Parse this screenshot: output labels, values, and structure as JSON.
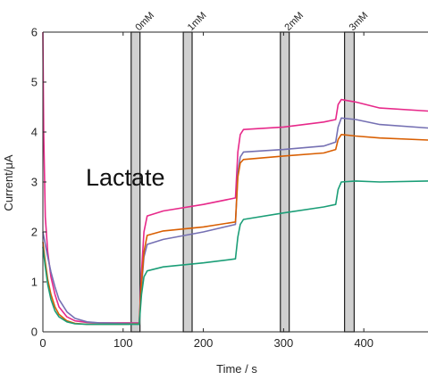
{
  "chart_data": {
    "type": "line",
    "title": "",
    "xlabel": "Time / s",
    "ylabel": "Current/μA",
    "xlim": [
      0,
      480
    ],
    "ylim": [
      0,
      6
    ],
    "xticks": [
      0,
      100,
      200,
      300,
      400
    ],
    "yticks": [
      0,
      1,
      2,
      3,
      4,
      5,
      6
    ],
    "grid": false,
    "annotation": "Lactate",
    "bands": [
      {
        "label": "0mM",
        "x0": 110,
        "x1": 121
      },
      {
        "label": "1mM",
        "x0": 175,
        "x1": 186
      },
      {
        "label": "2mM",
        "x0": 296,
        "x1": 307
      },
      {
        "label": "3mM",
        "x0": 376,
        "x1": 388
      }
    ],
    "series": [
      {
        "color": "#e7298a",
        "points": [
          [
            0,
            6.0
          ],
          [
            1,
            4.0
          ],
          [
            3,
            2.3
          ],
          [
            6,
            1.6
          ],
          [
            10,
            1.1
          ],
          [
            15,
            0.75
          ],
          [
            20,
            0.5
          ],
          [
            30,
            0.3
          ],
          [
            40,
            0.22
          ],
          [
            55,
            0.19
          ],
          [
            70,
            0.18
          ],
          [
            90,
            0.18
          ],
          [
            110,
            0.18
          ],
          [
            120,
            0.18
          ],
          [
            123,
            1.2
          ],
          [
            126,
            2.0
          ],
          [
            130,
            2.32
          ],
          [
            150,
            2.42
          ],
          [
            200,
            2.55
          ],
          [
            240,
            2.68
          ],
          [
            243,
            3.6
          ],
          [
            246,
            3.95
          ],
          [
            250,
            4.05
          ],
          [
            300,
            4.1
          ],
          [
            350,
            4.2
          ],
          [
            365,
            4.25
          ],
          [
            368,
            4.55
          ],
          [
            372,
            4.65
          ],
          [
            390,
            4.6
          ],
          [
            420,
            4.48
          ],
          [
            480,
            4.42
          ]
        ]
      },
      {
        "color": "#7570b3",
        "points": [
          [
            0,
            2.0
          ],
          [
            3,
            1.75
          ],
          [
            6,
            1.5
          ],
          [
            10,
            1.2
          ],
          [
            15,
            0.9
          ],
          [
            20,
            0.65
          ],
          [
            30,
            0.4
          ],
          [
            40,
            0.27
          ],
          [
            55,
            0.2
          ],
          [
            70,
            0.18
          ],
          [
            100,
            0.17
          ],
          [
            120,
            0.17
          ],
          [
            123,
            0.9
          ],
          [
            126,
            1.5
          ],
          [
            130,
            1.75
          ],
          [
            150,
            1.85
          ],
          [
            200,
            2.0
          ],
          [
            240,
            2.15
          ],
          [
            243,
            3.2
          ],
          [
            246,
            3.5
          ],
          [
            250,
            3.6
          ],
          [
            300,
            3.65
          ],
          [
            350,
            3.72
          ],
          [
            365,
            3.8
          ],
          [
            368,
            4.1
          ],
          [
            372,
            4.28
          ],
          [
            390,
            4.25
          ],
          [
            420,
            4.15
          ],
          [
            480,
            4.08
          ]
        ]
      },
      {
        "color": "#d95f02",
        "points": [
          [
            0,
            1.8
          ],
          [
            3,
            1.4
          ],
          [
            6,
            1.05
          ],
          [
            10,
            0.75
          ],
          [
            15,
            0.5
          ],
          [
            20,
            0.35
          ],
          [
            30,
            0.22
          ],
          [
            40,
            0.17
          ],
          [
            55,
            0.15
          ],
          [
            70,
            0.15
          ],
          [
            100,
            0.15
          ],
          [
            120,
            0.16
          ],
          [
            123,
            1.0
          ],
          [
            126,
            1.6
          ],
          [
            130,
            1.93
          ],
          [
            150,
            2.02
          ],
          [
            200,
            2.1
          ],
          [
            240,
            2.2
          ],
          [
            243,
            3.1
          ],
          [
            246,
            3.38
          ],
          [
            250,
            3.45
          ],
          [
            300,
            3.52
          ],
          [
            350,
            3.58
          ],
          [
            365,
            3.65
          ],
          [
            368,
            3.85
          ],
          [
            372,
            3.95
          ],
          [
            390,
            3.92
          ],
          [
            420,
            3.88
          ],
          [
            480,
            3.84
          ]
        ]
      },
      {
        "color": "#1b9e77",
        "points": [
          [
            0,
            1.7
          ],
          [
            3,
            1.3
          ],
          [
            6,
            0.95
          ],
          [
            10,
            0.65
          ],
          [
            15,
            0.42
          ],
          [
            20,
            0.3
          ],
          [
            30,
            0.2
          ],
          [
            40,
            0.16
          ],
          [
            55,
            0.15
          ],
          [
            70,
            0.15
          ],
          [
            100,
            0.15
          ],
          [
            120,
            0.15
          ],
          [
            123,
            0.75
          ],
          [
            126,
            1.1
          ],
          [
            130,
            1.22
          ],
          [
            150,
            1.3
          ],
          [
            200,
            1.38
          ],
          [
            240,
            1.46
          ],
          [
            243,
            1.9
          ],
          [
            246,
            2.15
          ],
          [
            250,
            2.25
          ],
          [
            300,
            2.38
          ],
          [
            350,
            2.5
          ],
          [
            365,
            2.55
          ],
          [
            368,
            2.85
          ],
          [
            372,
            3.0
          ],
          [
            390,
            3.02
          ],
          [
            420,
            3.0
          ],
          [
            480,
            3.02
          ]
        ]
      }
    ]
  }
}
